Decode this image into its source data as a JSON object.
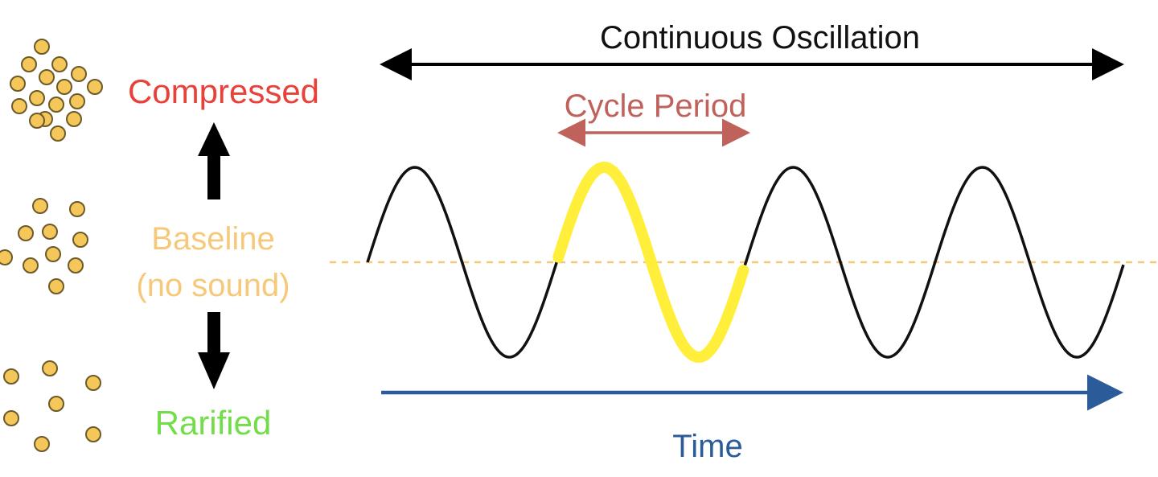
{
  "labels": {
    "compressed": "Compressed",
    "baseline_line1": "Baseline",
    "baseline_line2": "(no sound)",
    "rarified": "Rarified",
    "continuous": "Continuous Oscillation",
    "cycle_period": "Cycle Period",
    "time": "Time"
  },
  "colors": {
    "compressed": "#e8413a",
    "baseline": "#f6c97a",
    "rarified": "#72dd48",
    "cycle_period": "#c0625c",
    "time": "#2c5b9a",
    "wave": "#111111",
    "highlight": "#ffef3a",
    "particle_fill": "#f5c75a",
    "particle_stroke": "#6b5a2a",
    "arrow": "#000000",
    "baseline_dash": "#f6c97a"
  },
  "wave": {
    "cycles": 4,
    "highlighted_cycle": 2
  }
}
